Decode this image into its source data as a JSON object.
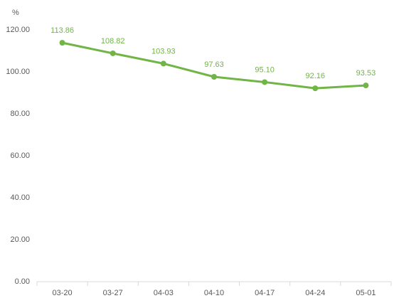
{
  "chart_data": {
    "type": "line",
    "y_label": "%",
    "categories": [
      "03-20",
      "03-27",
      "04-03",
      "04-10",
      "04-17",
      "04-24",
      "05-01"
    ],
    "values": [
      113.86,
      108.82,
      103.93,
      97.63,
      95.1,
      92.16,
      93.53
    ],
    "value_labels": [
      "113.86",
      "108.82",
      "103.93",
      "97.63",
      "95.10",
      "92.16",
      "93.53"
    ],
    "color": "#70b545",
    "ylim": [
      0,
      120
    ],
    "yticks": [
      {
        "value": 0,
        "label": "0.00"
      },
      {
        "value": 20,
        "label": "20.00"
      },
      {
        "value": 40,
        "label": "40.00"
      },
      {
        "value": 60,
        "label": "60.00"
      },
      {
        "value": 80,
        "label": "80.00"
      },
      {
        "value": 100,
        "label": "100.00"
      },
      {
        "value": 120,
        "label": "120.00"
      }
    ],
    "grid": false
  }
}
